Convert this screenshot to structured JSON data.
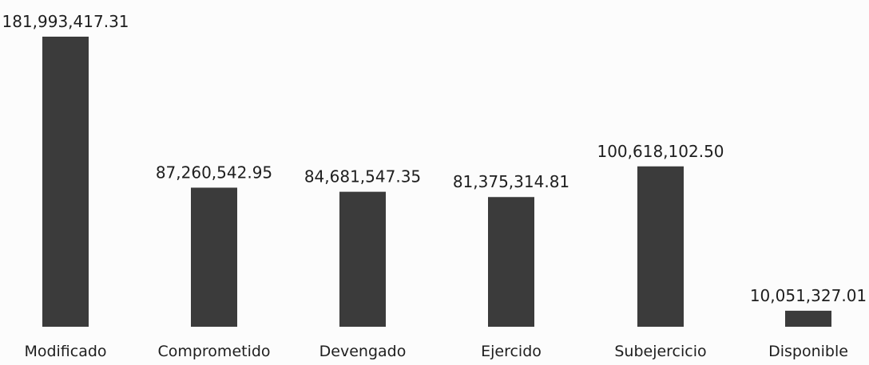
{
  "chart_data": {
    "type": "bar",
    "categories": [
      "Modificado",
      "Comprometido",
      "Devengado",
      "Ejercido",
      "Subejercicio",
      "Disponible"
    ],
    "values": [
      181993417.31,
      87260542.95,
      84681547.35,
      81375314.81,
      100618102.5,
      10051327.01
    ],
    "data_labels": [
      "181,993,417.31",
      "87,260,542.95",
      "84,681,547.35",
      "81,375,314.81",
      "100,618,102.50",
      "10,051,327.01"
    ],
    "title": "",
    "xlabel": "",
    "ylabel": "",
    "ylim": [
      0,
      181993417.31
    ],
    "grid": false,
    "legend": "none",
    "colors": {
      "bar": "#3b3b3b",
      "text": "#1e1e1e"
    }
  }
}
